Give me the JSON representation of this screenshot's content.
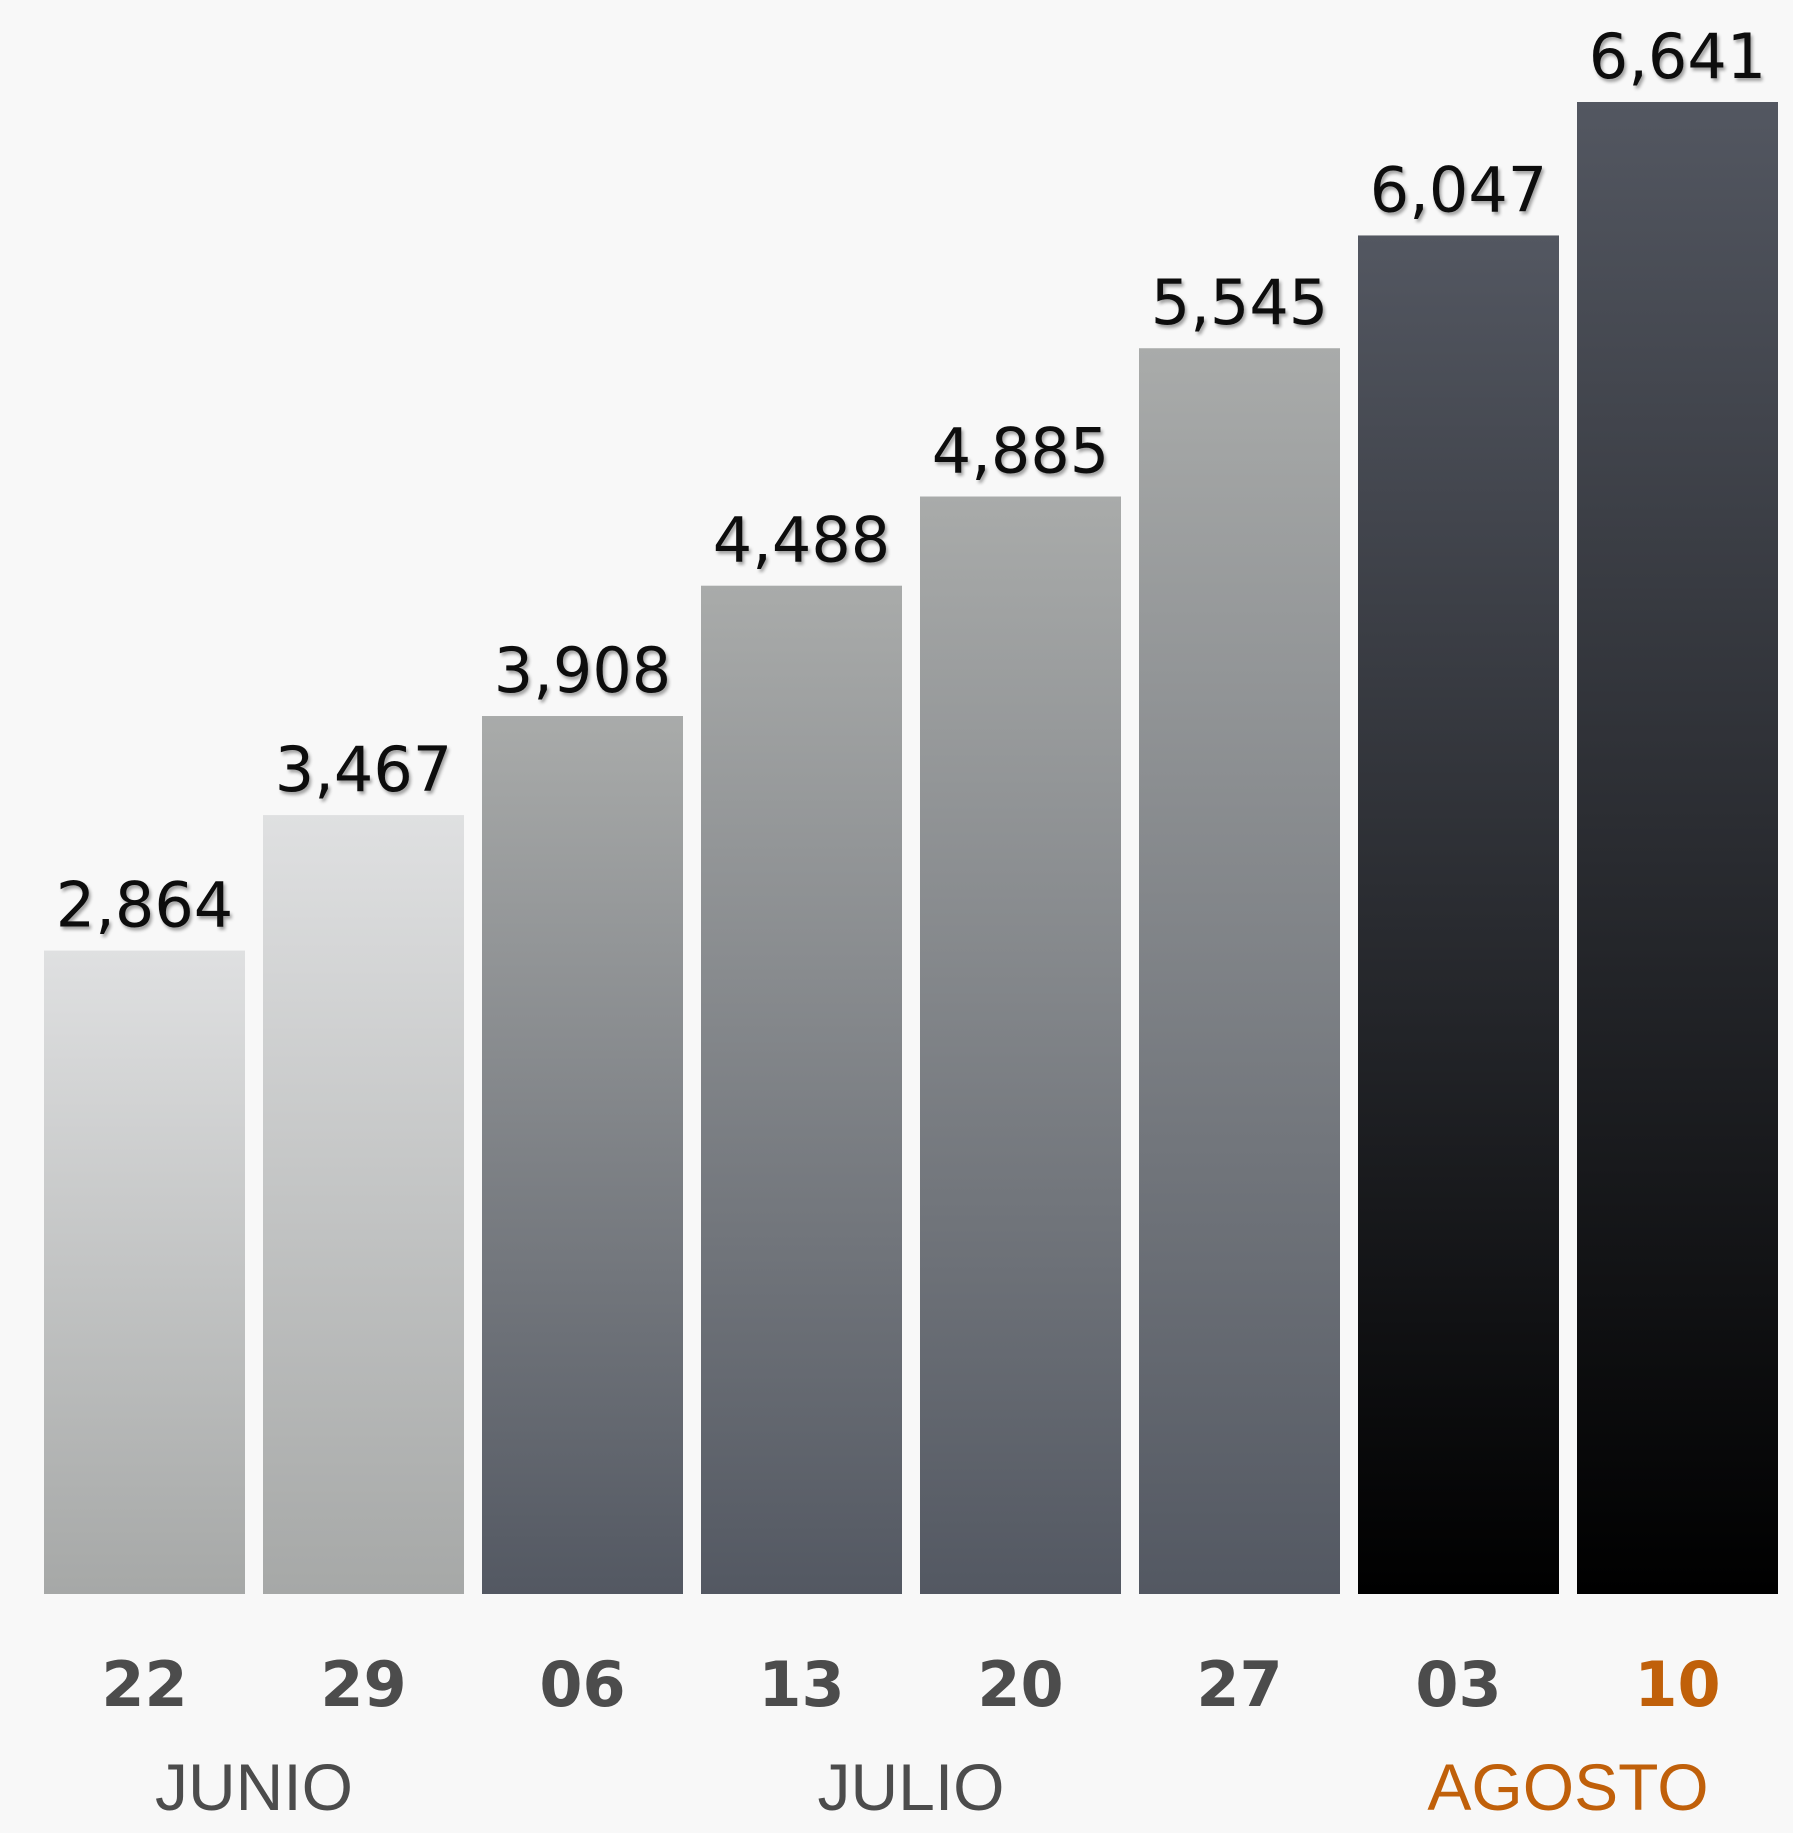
{
  "chart_data": {
    "type": "bar",
    "categories": [
      "22",
      "29",
      "06",
      "13",
      "20",
      "27",
      "03",
      "10"
    ],
    "values": [
      2864,
      3467,
      3908,
      4488,
      4885,
      5545,
      6047,
      6641
    ],
    "value_labels": [
      "2,864",
      "3,467",
      "3,908",
      "4,488",
      "4,885",
      "5,545",
      "6,047",
      "6,641"
    ],
    "months": [
      {
        "label": "JUNIO",
        "from": 0,
        "to": 1
      },
      {
        "label": "JULIO",
        "from": 2,
        "to": 5
      },
      {
        "label": "AGOSTO",
        "from": 6,
        "to": 7
      }
    ],
    "bar_styles": [
      "light",
      "light",
      "mid",
      "mid",
      "mid",
      "mid",
      "dark",
      "dark"
    ],
    "highlight_index": 7,
    "ylim": [
      0,
      6641
    ],
    "title": "",
    "xlabel": "",
    "ylabel": "",
    "grid": false,
    "colors": {
      "background": "#f8f8f8",
      "light_top": "#dfe0e1",
      "light_bottom": "#a6a8a7",
      "mid_top": "#a9abaa",
      "mid_bottom": "#535862",
      "dark_top": "#535761",
      "dark_bottom": "#000000",
      "value_text": "#111111",
      "day_text": "#4c4c4c",
      "month_text": "#4c4c4c",
      "highlight_text": "#c0600a"
    }
  }
}
